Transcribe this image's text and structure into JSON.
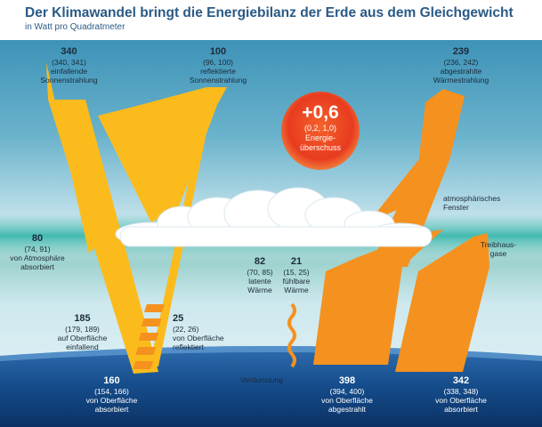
{
  "header": {
    "title": "Der Klimawandel bringt die Energiebilanz der Erde aus dem Gleichgewicht",
    "subtitle": "in Watt pro Quadratmeter"
  },
  "flows": {
    "solar_in": {
      "value": "340",
      "range": "(340, 341)",
      "line1": "einfallende",
      "line2": "Sonnenstrahlung"
    },
    "solar_reflected": {
      "value": "100",
      "range": "(96, 100)",
      "line1": "reflektierte",
      "line2": "Sonnenstrahlung"
    },
    "thermal_out": {
      "value": "239",
      "range": "(236, 242)",
      "line1": "abgestrahlte",
      "line2": "Wärmestrahlung"
    },
    "atmosphere_absorbed": {
      "value": "80",
      "range": "(74, 91)",
      "line1": "von Atmosphäre",
      "line2": "absorbiert"
    },
    "surface_incident": {
      "value": "185",
      "range": "(179, 189)",
      "line1": "auf Oberfläche",
      "line2": "einfallend"
    },
    "surface_reflected": {
      "value": "25",
      "range": "(22, 26)",
      "line1": "von Oberfläche",
      "line2": "reflektiert"
    },
    "latent_heat": {
      "value": "82",
      "range": "(70, 85)",
      "line1": "latente",
      "line2": "Wärme"
    },
    "sensible_heat": {
      "value": "21",
      "range": "(15, 25)",
      "line1": "fühlbare",
      "line2": "Wärme"
    },
    "surface_absorbed_solar": {
      "value": "160",
      "range": "(154, 166)",
      "line1": "von Oberfläche",
      "line2": "absorbiert"
    },
    "surface_emitted": {
      "value": "398",
      "range": "(394, 400)",
      "line1": "von Oberfläche",
      "line2": "abgestrahlt"
    },
    "surface_absorbed_back": {
      "value": "342",
      "range": "(338, 348)",
      "line1": "von Oberfläche",
      "line2": "absorbiert"
    }
  },
  "labels": {
    "evaporation": "Verdunstung",
    "atmospheric_window_1": "atmosphärisches",
    "atmospheric_window_2": "Fenster",
    "greenhouse_1": "Treibhaus-",
    "greenhouse_2": "gase"
  },
  "imbalance": {
    "value": "+0,6",
    "range": "(0,2, 1,0)",
    "line1": "Energie-",
    "line2": "überschuss"
  },
  "colors": {
    "title": "#2a5a86",
    "sky_top": "#4a9bbd",
    "sky_bottom": "#cfe8f0",
    "greenhouse_band": "#35b6aa",
    "solar_yellow": "#fcbb1c",
    "thermal_orange": "#f5911f",
    "imbalance_red": "#e8361e",
    "earth": "#0e3f7a"
  }
}
